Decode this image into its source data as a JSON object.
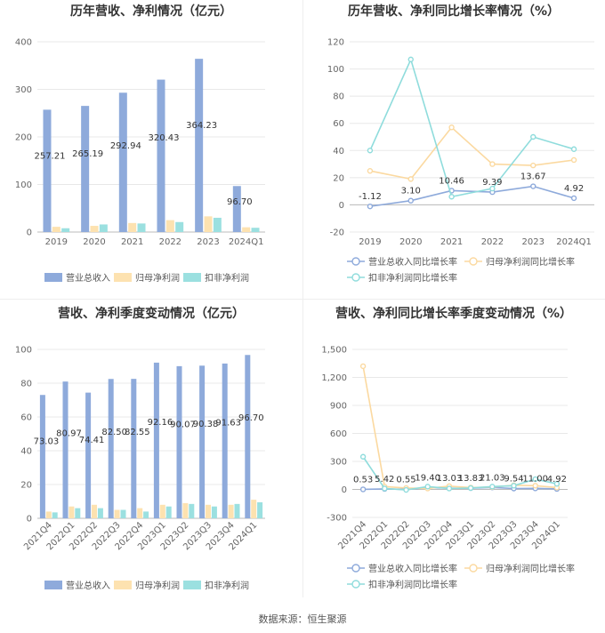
{
  "source_label": "数据来源：恒生聚源",
  "colors": {
    "revenue": "#8eaadb",
    "net_profit": "#fde2b0",
    "deducted": "#9be0e0",
    "line_revenue": "#8eaadb",
    "line_net": "#fbd9a0",
    "line_deducted": "#8fdcdc"
  },
  "chart_data": [
    {
      "type": "bar",
      "title": "历年营收、净利情况（亿元）",
      "categories": [
        "2019",
        "2020",
        "2021",
        "2022",
        "2023",
        "2024Q1"
      ],
      "ylim": [
        0,
        400
      ],
      "yticks": [
        0,
        100,
        200,
        300,
        400
      ],
      "series": [
        {
          "name": "营业总收入",
          "values": [
            257.21,
            265.19,
            292.94,
            320.43,
            364.23,
            96.7
          ],
          "labels": [
            "257.21",
            "265.19",
            "292.94",
            "320.43",
            "364.23",
            "96.70"
          ]
        },
        {
          "name": "归母净利润",
          "values": [
            11,
            13,
            19,
            25,
            33,
            10
          ]
        },
        {
          "name": "扣非净利润",
          "values": [
            8,
            16,
            18,
            21,
            30,
            9
          ]
        }
      ],
      "grid": true,
      "legend": "bottom"
    },
    {
      "type": "line",
      "title": "历年营收、净利同比增长率情况（%）",
      "categories": [
        "2019",
        "2020",
        "2021",
        "2022",
        "2023",
        "2024Q1"
      ],
      "ylim": [
        -20,
        120
      ],
      "yticks": [
        -20,
        0,
        20,
        40,
        60,
        80,
        100,
        120
      ],
      "series": [
        {
          "name": "营业总收入同比增长率",
          "values": [
            -1.12,
            3.1,
            10.46,
            9.39,
            13.67,
            4.92
          ],
          "labels": [
            "-1.12",
            "3.10",
            "10.46",
            "9.39",
            "13.67",
            "4.92"
          ]
        },
        {
          "name": "归母净利润同比增长率",
          "values": [
            25,
            19,
            57,
            30,
            29,
            33
          ]
        },
        {
          "name": "扣非净利润同比增长率",
          "values": [
            40,
            107,
            6,
            12,
            50,
            41
          ]
        }
      ],
      "grid": true,
      "legend": "bottom"
    },
    {
      "type": "bar",
      "title": "营收、净利季度变动情况（亿元）",
      "categories": [
        "2021Q4",
        "2022Q1",
        "2022Q2",
        "2022Q3",
        "2022Q4",
        "2023Q1",
        "2023Q2",
        "2023Q3",
        "2023Q4",
        "2024Q1"
      ],
      "ylim": [
        0,
        100
      ],
      "yticks": [
        0,
        20,
        40,
        60,
        80,
        100
      ],
      "series": [
        {
          "name": "营业总收入",
          "values": [
            73.03,
            80.97,
            74.41,
            82.5,
            82.55,
            92.16,
            90.07,
            90.38,
            91.63,
            96.7
          ],
          "labels": [
            "73.03",
            "80.97",
            "74.41",
            "82.50",
            "82.55",
            "92.16",
            "90.07",
            "90.38",
            "91.63",
            "96.70"
          ]
        },
        {
          "name": "归母净利润",
          "values": [
            4,
            7,
            8,
            5,
            6,
            8,
            9,
            8,
            8,
            11
          ]
        },
        {
          "name": "扣非净利润",
          "values": [
            3.5,
            6,
            6,
            5,
            4,
            7,
            8.5,
            7,
            8.5,
            9.5
          ]
        }
      ],
      "grid": true,
      "legend": "bottom"
    },
    {
      "type": "line",
      "title": "营收、净利同比增长率季度变动情况（%）",
      "categories": [
        "2021Q4",
        "2022Q1",
        "2022Q2",
        "2022Q3",
        "2022Q4",
        "2023Q1",
        "2023Q2",
        "2023Q3",
        "2023Q4",
        "2024Q1"
      ],
      "ylim": [
        -300,
        1500
      ],
      "yticks": [
        -300,
        0,
        300,
        600,
        900,
        1200,
        1500
      ],
      "ytick_labels": [
        "-300",
        "0",
        "300",
        "600",
        "900",
        "1,200",
        "1,500"
      ],
      "series": [
        {
          "name": "营业总收入同比增长率",
          "values": [
            0.53,
            5.42,
            0.55,
            19.4,
            13.03,
            13.83,
            21.03,
            9.54,
            11.0,
            4.92
          ],
          "labels": [
            "0.53",
            "5.42",
            "0.55",
            "19.40",
            "13.03",
            "13.83",
            "21.03",
            "9.54",
            "11.00",
            "4.92"
          ]
        },
        {
          "name": "归母净利润同比增长率",
          "values": [
            1320,
            30,
            15,
            10,
            35,
            20,
            25,
            45,
            40,
            20
          ]
        },
        {
          "name": "扣非净利润同比增长率",
          "values": [
            350,
            10,
            -5,
            30,
            10,
            15,
            30,
            40,
            110,
            60
          ]
        }
      ],
      "grid": true,
      "legend": "bottom"
    }
  ]
}
